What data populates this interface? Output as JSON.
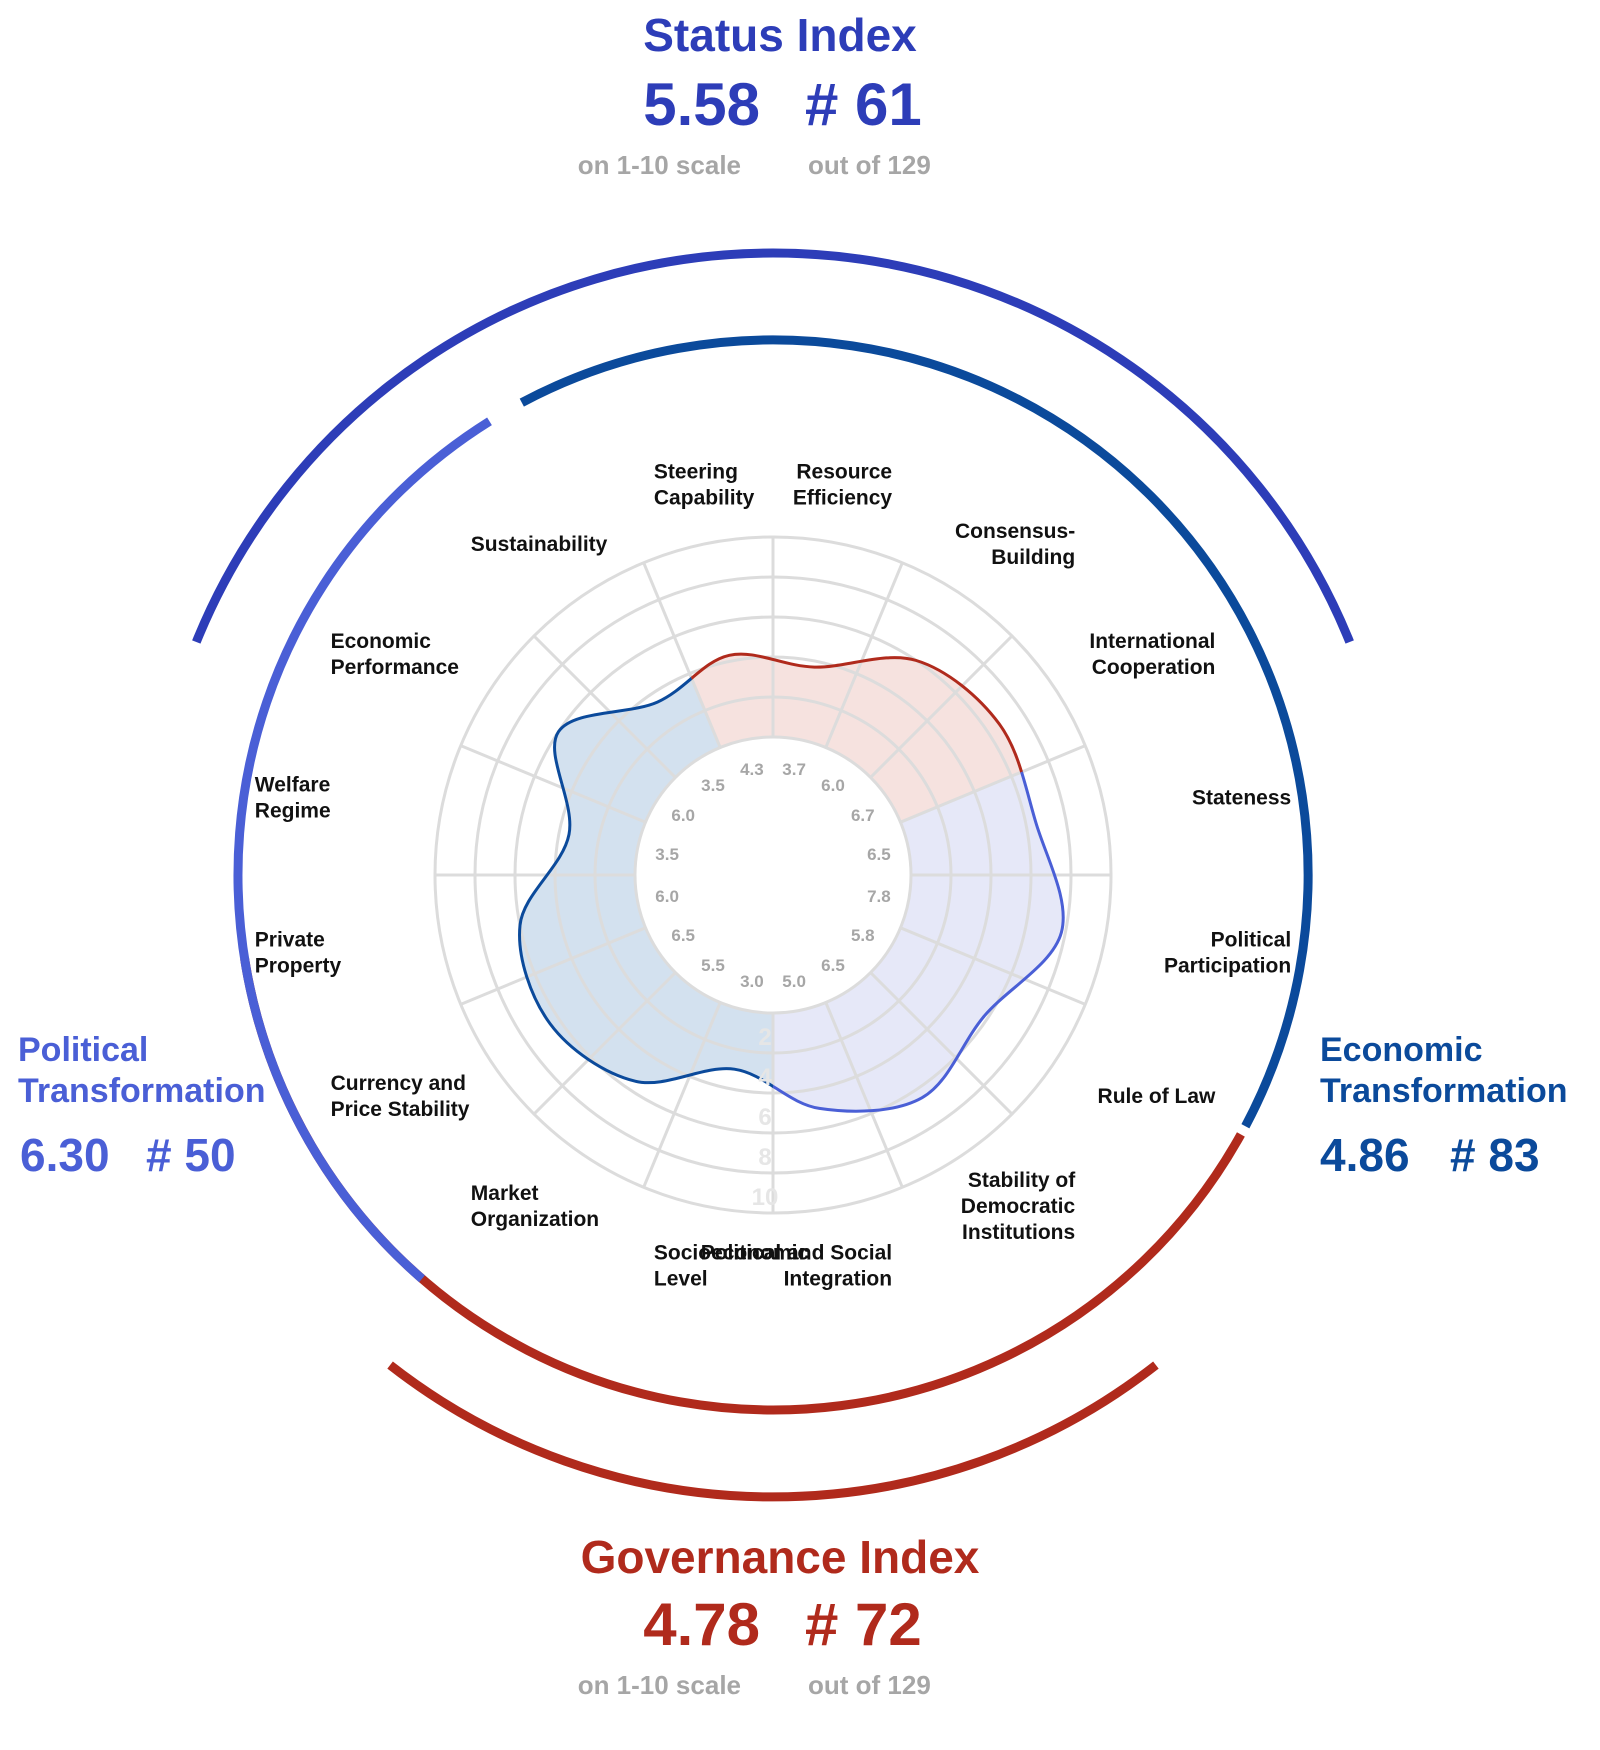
{
  "status_index": {
    "title": "Status Index",
    "score": "5.58",
    "rank": "# 61",
    "score_note": "on 1-10 scale",
    "rank_note": "out of 129"
  },
  "governance_index": {
    "title": "Governance Index",
    "score": "4.78",
    "rank": "# 72",
    "score_note": "on 1-10 scale",
    "rank_note": "out of 129"
  },
  "political_transformation": {
    "title_line1": "Political",
    "title_line2": "Transformation",
    "score": "6.30",
    "rank": "# 50"
  },
  "economic_transformation": {
    "title_line1": "Economic",
    "title_line2": "Transformation",
    "score": "4.86",
    "rank": "# 83"
  },
  "colors": {
    "status": "#2d3db8",
    "political": "#4a5fd6",
    "economic": "#0b4a9b",
    "governance": "#b02a1c",
    "political_fill": "#e6e8f8",
    "economic_fill": "#d3e1ef",
    "governance_fill": "#f6e2df",
    "grid": "#dcdcdc",
    "value_label": "#a6a6a6"
  },
  "chart_data": {
    "type": "radar",
    "scale_range": [
      0,
      10
    ],
    "ring_labels": [
      "2",
      "4",
      "6",
      "8",
      "10"
    ],
    "categories": [
      {
        "name": "Socioeconomic Level",
        "lines": [
          "Socioeconomic",
          "Level"
        ],
        "value": 3.0,
        "label": "3.0",
        "group": "economic"
      },
      {
        "name": "Market Organization",
        "lines": [
          "Market",
          "Organization"
        ],
        "value": 5.5,
        "label": "5.5",
        "group": "economic"
      },
      {
        "name": "Currency and Price Stability",
        "lines": [
          "Currency and",
          "Price Stability"
        ],
        "value": 6.5,
        "label": "6.5",
        "group": "economic"
      },
      {
        "name": "Private Property",
        "lines": [
          "Private",
          "Property"
        ],
        "value": 6.0,
        "label": "6.0",
        "group": "economic"
      },
      {
        "name": "Welfare Regime",
        "lines": [
          "Welfare",
          "Regime"
        ],
        "value": 3.5,
        "label": "3.5",
        "group": "economic"
      },
      {
        "name": "Economic Performance",
        "lines": [
          "Economic",
          "Performance"
        ],
        "value": 6.0,
        "label": "6.0",
        "group": "economic"
      },
      {
        "name": "Sustainability",
        "lines": [
          "Sustainability"
        ],
        "value": 3.5,
        "label": "3.5",
        "group": "economic"
      },
      {
        "name": "Steering Capability",
        "lines": [
          "Steering",
          "Capability"
        ],
        "value": 4.3,
        "label": "4.3",
        "group": "governance"
      },
      {
        "name": "Resource Efficiency",
        "lines": [
          "Resource",
          "Efficiency"
        ],
        "value": 3.7,
        "label": "3.7",
        "group": "governance"
      },
      {
        "name": "Consensus-Building",
        "lines": [
          "Consensus-",
          "Building"
        ],
        "value": 6.0,
        "label": "6.0",
        "group": "governance"
      },
      {
        "name": "International Cooperation",
        "lines": [
          "International",
          "Cooperation"
        ],
        "value": 6.7,
        "label": "6.7",
        "group": "governance"
      },
      {
        "name": "Stateness",
        "lines": [
          "Stateness"
        ],
        "value": 6.5,
        "label": "6.5",
        "group": "political"
      },
      {
        "name": "Political Participation",
        "lines": [
          "Political",
          "Participation"
        ],
        "value": 7.8,
        "label": "7.8",
        "group": "political"
      },
      {
        "name": "Rule of Law",
        "lines": [
          "Rule of Law"
        ],
        "value": 5.8,
        "label": "5.8",
        "group": "political"
      },
      {
        "name": "Stability of Democratic Institutions",
        "lines": [
          "Stability of",
          "Democratic",
          "Institutions"
        ],
        "value": 6.5,
        "label": "6.5",
        "group": "political"
      },
      {
        "name": "Political and Social Integration",
        "lines": [
          "Political and Social",
          "Integration"
        ],
        "value": 5.0,
        "label": "5.0",
        "group": "political"
      }
    ]
  }
}
